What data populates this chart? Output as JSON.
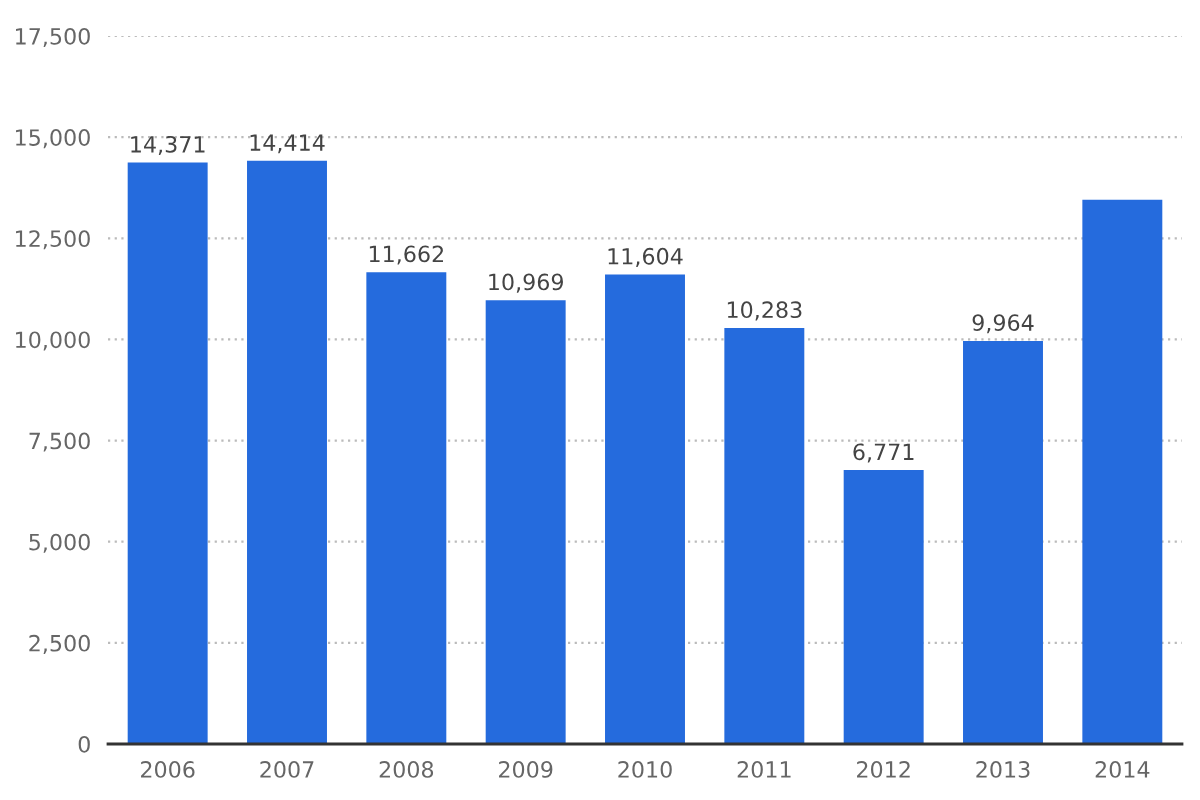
{
  "chart_data": {
    "type": "bar",
    "categories": [
      "2006",
      "2007",
      "2008",
      "2009",
      "2010",
      "2011",
      "2012",
      "2013",
      "2014"
    ],
    "values": [
      14371,
      14414,
      11662,
      10969,
      11604,
      10283,
      6771,
      9964,
      13450
    ],
    "value_labels": [
      "14,371",
      "14,414",
      "11,662",
      "10,969",
      "11,604",
      "10,283",
      "6,771",
      "9,964",
      null
    ],
    "color": "#256bdd",
    "ylim": [
      0,
      17500
    ],
    "yticks": [
      0,
      {
        "value": 2500,
        "label": "2,500"
      },
      {
        "value": 5000,
        "label": "5,000"
      },
      {
        "value": 7500,
        "label": "7,500"
      },
      {
        "value": 10000,
        "label": "10,000"
      },
      {
        "value": 12500,
        "label": "12,500"
      },
      {
        "value": 15000,
        "label": "15,000"
      },
      {
        "value": 17500,
        "label": "17,500"
      }
    ],
    "grid": "y"
  }
}
